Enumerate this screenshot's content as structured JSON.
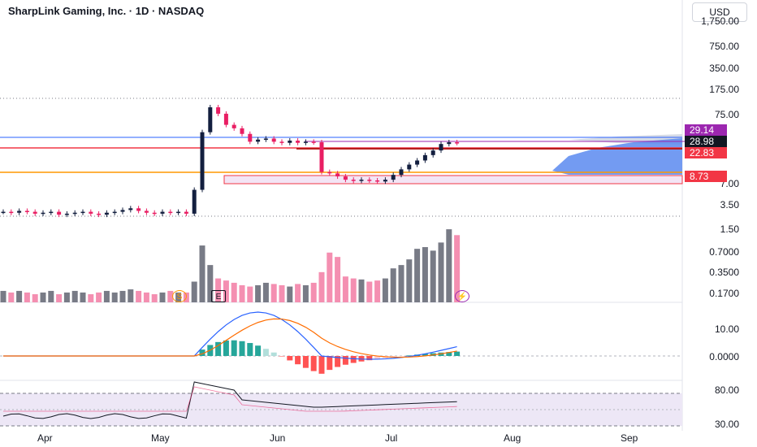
{
  "header": {
    "title": "SharpLink Gaming, Inc. · 1D · NASDAQ"
  },
  "currency_button": {
    "label": "USD"
  },
  "price_axis": {
    "ticks": [
      "1,750.00",
      "750.00",
      "350.00",
      "175.00",
      "75.00",
      "7.00",
      "3.50",
      "1.50",
      "0.7000",
      "0.3500",
      "0.1700"
    ]
  },
  "price_badges": [
    {
      "label": "29.14",
      "color": "#9c27b0"
    },
    {
      "label": "28.98",
      "color": "#131722"
    },
    {
      "label": "22.83",
      "color": "#f23645"
    },
    {
      "label": "8.73",
      "color": "#f23645"
    }
  ],
  "macd_axis": {
    "ticks": [
      "10.00",
      "0.0000"
    ]
  },
  "rsi_axis": {
    "ticks": [
      "80.00",
      "30.00"
    ]
  },
  "time_axis": {
    "months": [
      "Apr",
      "May",
      "Jun",
      "Jul",
      "Aug",
      "Sep"
    ]
  },
  "event_markers": [
    {
      "label": "S",
      "kind": "split"
    },
    {
      "label": "E",
      "kind": "earnings"
    },
    {
      "label": "⚡",
      "kind": "news"
    }
  ],
  "colors": {
    "up": "#131f3f",
    "down": "#e91e63",
    "volume_up": "#787b86",
    "volume_down": "#f48fb1",
    "macd_line": "#2962ff",
    "signal_line": "#ff6d00",
    "rsi_line": "#131722",
    "rsi_band": "#ede7f6"
  },
  "chart_data": {
    "type": "candlestick",
    "title": "SharpLink Gaming, Inc. · 1D · NASDAQ",
    "price_scale": "log",
    "candles_close": [
      3.6,
      3.5,
      3.7,
      3.6,
      3.4,
      3.5,
      3.6,
      3.3,
      3.4,
      3.5,
      3.6,
      3.4,
      3.3,
      3.5,
      3.6,
      3.8,
      4.0,
      3.7,
      3.5,
      3.4,
      3.6,
      3.5,
      3.6,
      3.4,
      7.0,
      40,
      85,
      70,
      50,
      45,
      38,
      30,
      32,
      33,
      30,
      29,
      31,
      29,
      30,
      29.5,
      12,
      11.5,
      10.5,
      9.5,
      9.2,
      9.5,
      9.3,
      9.0,
      9.5,
      11,
      13,
      15,
      17,
      20,
      23,
      28,
      29.5,
      28.98
    ],
    "volume": [
      0.18,
      0.17,
      0.18,
      0.17,
      0.16,
      0.17,
      0.18,
      0.16,
      0.17,
      0.18,
      0.17,
      0.16,
      0.17,
      0.18,
      0.17,
      0.18,
      0.19,
      0.18,
      0.17,
      0.16,
      0.17,
      0.18,
      0.17,
      0.17,
      0.25,
      0.9,
      0.45,
      0.28,
      0.26,
      0.24,
      0.22,
      0.21,
      0.22,
      0.24,
      0.23,
      0.22,
      0.21,
      0.23,
      0.22,
      0.24,
      0.35,
      0.7,
      0.6,
      0.3,
      0.28,
      0.27,
      0.25,
      0.26,
      0.28,
      0.4,
      0.45,
      0.55,
      0.8,
      0.85,
      0.75,
      1.0,
      1.6,
      1.3
    ],
    "macd": {
      "zero": 0,
      "max": 12
    },
    "rsi": {
      "upper": 70,
      "lower": 30
    }
  }
}
